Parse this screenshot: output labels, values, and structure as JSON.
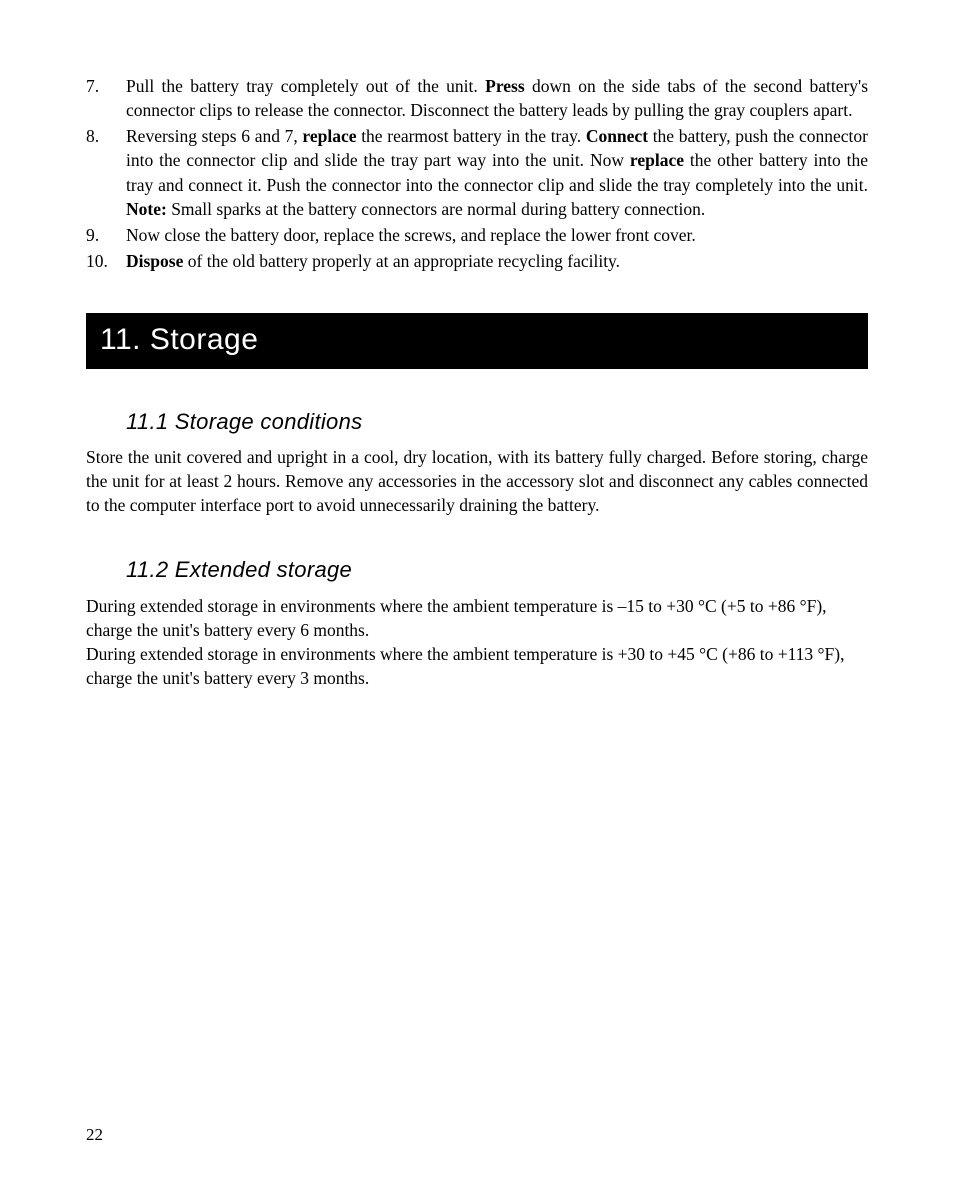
{
  "colors": {
    "page_bg": "#ffffff",
    "text": "#000000",
    "banner_bg": "#000000",
    "banner_text": "#ffffff"
  },
  "typography": {
    "body_family": "Minion Pro / Times New Roman serif",
    "body_size_pt": 13,
    "heading_family": "Avant Garde / Century Gothic sans-serif",
    "h1_size_pt": 22,
    "h2_size_pt": 16,
    "h2_style": "italic"
  },
  "list": {
    "items": [
      {
        "num": "7.",
        "text_a": "Pull the battery tray completely out of the unit. ",
        "bold_a": "Press",
        "text_b": " down on the side tabs of the second battery's connector clips to release the connector. Disconnect the battery leads by pulling the gray couplers apart."
      },
      {
        "num": "8.",
        "text_a": "Reversing steps 6 and 7, ",
        "bold_a": "replace",
        "text_b": " the rearmost battery in the tray. ",
        "bold_b": "Connect",
        "text_c": " the battery, push the connector into the connector clip and slide the tray part way into the unit. Now ",
        "bold_c": "replace",
        "text_d": " the other battery into the tray and connect it. Push the connector into the connector clip and slide the tray completely into the unit. ",
        "bold_d": "Note:",
        "text_e": " Small sparks at the battery connectors are normal during battery connection."
      },
      {
        "num": "9.",
        "text_a": "Now close the battery door, replace the screws, and replace the lower front cover."
      },
      {
        "num": "10.",
        "bold_a": "Dispose",
        "text_b": " of the old battery properly at an appropriate recycling facility."
      }
    ]
  },
  "section": {
    "title": "11. Storage",
    "sub1": {
      "title": "11.1 Storage conditions",
      "para": "Store the unit covered and upright in a cool, dry location, with its battery fully charged. Before storing, charge the unit for at least 2 hours. Remove any accessories in the accessory slot and disconnect any cables connected to the computer interface port to avoid unnecessarily draining the battery."
    },
    "sub2": {
      "title": "11.2 Extended storage",
      "para1": "During extended storage in environments where the ambient temperature is –15 to +30 °C (+5 to +86 °F), charge the unit's battery every 6 months.",
      "para2": "During extended storage in environments where the ambient temperature is +30 to +45 °C (+86 to +113 °F), charge the unit's battery every 3 months."
    }
  },
  "page_number": "22"
}
